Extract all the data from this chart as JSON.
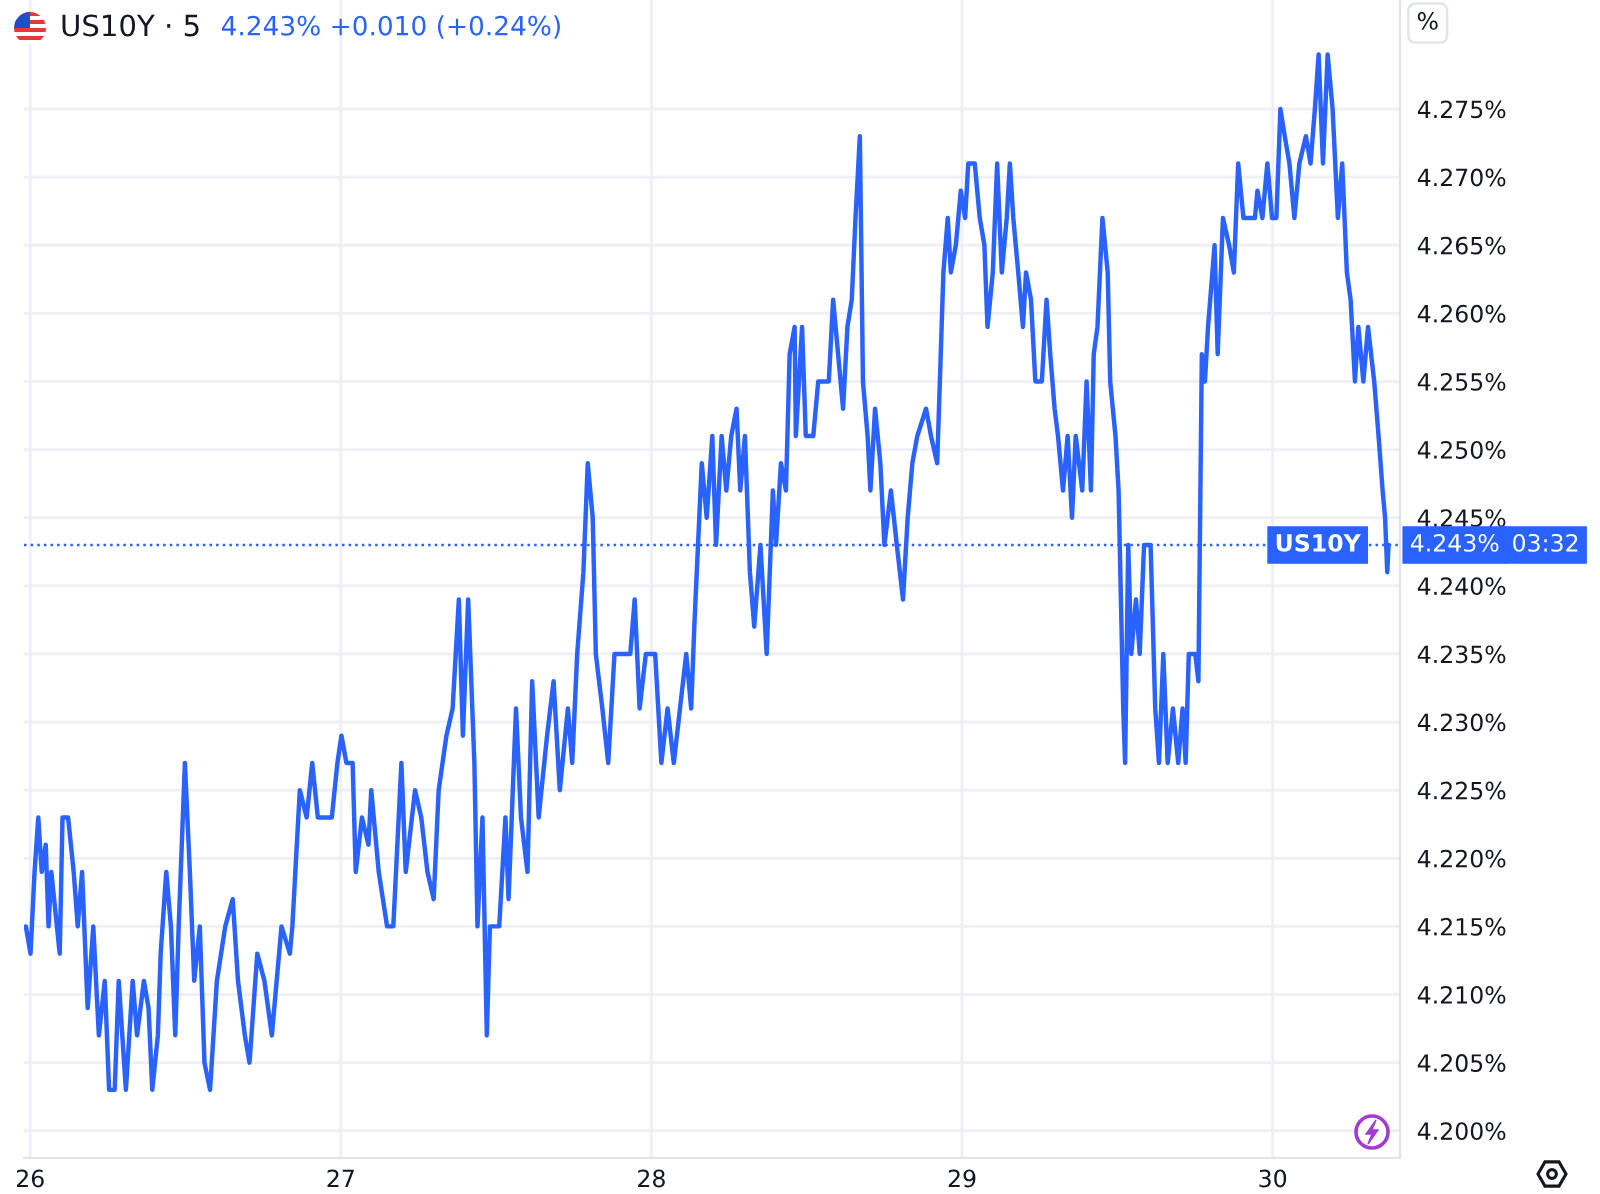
{
  "chart_data": {
    "type": "line",
    "title": "US10Y · 5",
    "subtitle": "4.243% +0.010 (+0.24%)",
    "ylabel": "%",
    "series": [
      {
        "name": "US10Y",
        "color": "#2962ff",
        "x": [
          25.986,
          26.001,
          26.014,
          26.026,
          26.037,
          26.05,
          26.059,
          26.068,
          26.095,
          26.104,
          26.122,
          26.14,
          26.153,
          26.167,
          26.185,
          26.203,
          26.221,
          26.24,
          26.254,
          26.272,
          26.285,
          26.308,
          26.33,
          26.344,
          26.366,
          26.381,
          26.393,
          26.411,
          26.42,
          26.438,
          26.453,
          26.467,
          26.478,
          26.498,
          26.514,
          26.528,
          26.546,
          26.561,
          26.579,
          26.601,
          26.628,
          26.652,
          26.669,
          26.691,
          26.706,
          26.731,
          26.754,
          26.778,
          26.809,
          26.836,
          26.844,
          26.868,
          26.89,
          26.908,
          26.926,
          26.971,
          26.989,
          27.002,
          27.018,
          27.038,
          27.048,
          27.068,
          27.089,
          27.098,
          27.122,
          27.149,
          27.169,
          27.195,
          27.209,
          27.239,
          27.259,
          27.279,
          27.299,
          27.315,
          27.34,
          27.36,
          27.38,
          27.393,
          27.41,
          27.43,
          27.44,
          27.456,
          27.47,
          27.48,
          27.51,
          27.53,
          27.54,
          27.564,
          27.58,
          27.601,
          27.616,
          27.637,
          27.664,
          27.685,
          27.705,
          27.731,
          27.745,
          27.761,
          27.781,
          27.795,
          27.811,
          27.821,
          27.842,
          27.861,
          27.881,
          27.932,
          27.946,
          27.962,
          27.982,
          28.012,
          28.032,
          28.052,
          28.072,
          28.092,
          28.112,
          28.128,
          28.138,
          28.162,
          28.178,
          28.196,
          28.208,
          28.226,
          28.241,
          28.257,
          28.274,
          28.286,
          28.301,
          28.317,
          28.331,
          28.351,
          28.371,
          28.391,
          28.401,
          28.417,
          28.433,
          28.445,
          28.461,
          28.465,
          28.485,
          28.497,
          28.521,
          28.537,
          28.571,
          28.585,
          28.601,
          28.617,
          28.631,
          28.645,
          28.657,
          28.671,
          28.681,
          28.696,
          28.705,
          28.72,
          28.737,
          28.75,
          28.771,
          28.79,
          28.81,
          28.825,
          28.84,
          28.856,
          28.884,
          28.9,
          28.92,
          28.94,
          28.954,
          28.964,
          28.98,
          28.996,
          29.01,
          29.02,
          29.041,
          29.057,
          29.072,
          29.082,
          29.099,
          29.113,
          29.128,
          29.144,
          29.154,
          29.165,
          29.181,
          29.196,
          29.206,
          29.222,
          29.236,
          29.257,
          29.272,
          29.284,
          29.298,
          29.309,
          29.325,
          29.34,
          29.354,
          29.366,
          29.387,
          29.401,
          29.415,
          29.424,
          29.436,
          29.452,
          29.469,
          29.477,
          29.494,
          29.504,
          29.519,
          29.525,
          29.535,
          29.545,
          29.56,
          29.572,
          29.586,
          29.607,
          29.622,
          29.634,
          29.648,
          29.662,
          29.679,
          29.696,
          29.71,
          29.72,
          29.73,
          29.751,
          29.761,
          29.772,
          29.782,
          29.792,
          29.813,
          29.823,
          29.84,
          29.86,
          29.875,
          29.889,
          29.906,
          29.943,
          29.951,
          29.967,
          29.983,
          29.998,
          30.012,
          30.025,
          30.039,
          30.054,
          30.07,
          30.086,
          30.107,
          30.122,
          30.136,
          30.148,
          30.162,
          30.177,
          30.193,
          30.21,
          30.224,
          30.239,
          30.251,
          30.265,
          30.276,
          30.292,
          30.307,
          30.327,
          30.341,
          30.354,
          30.362,
          30.369,
          30.373
        ],
        "values": [
          4.215,
          4.213,
          4.219,
          4.223,
          4.219,
          4.221,
          4.215,
          4.219,
          4.213,
          4.223,
          4.223,
          4.219,
          4.215,
          4.219,
          4.209,
          4.215,
          4.207,
          4.211,
          4.203,
          4.203,
          4.211,
          4.203,
          4.211,
          4.207,
          4.211,
          4.209,
          4.203,
          4.207,
          4.213,
          4.219,
          4.215,
          4.207,
          4.215,
          4.227,
          4.219,
          4.211,
          4.215,
          4.205,
          4.203,
          4.211,
          4.215,
          4.217,
          4.211,
          4.207,
          4.205,
          4.213,
          4.211,
          4.207,
          4.215,
          4.213,
          4.215,
          4.225,
          4.223,
          4.227,
          4.223,
          4.223,
          4.227,
          4.229,
          4.227,
          4.227,
          4.219,
          4.223,
          4.221,
          4.225,
          4.219,
          4.215,
          4.215,
          4.227,
          4.219,
          4.225,
          4.223,
          4.219,
          4.217,
          4.225,
          4.229,
          4.231,
          4.239,
          4.229,
          4.239,
          4.227,
          4.215,
          4.223,
          4.207,
          4.215,
          4.215,
          4.223,
          4.217,
          4.231,
          4.223,
          4.219,
          4.233,
          4.223,
          4.229,
          4.233,
          4.225,
          4.231,
          4.227,
          4.235,
          4.241,
          4.249,
          4.245,
          4.235,
          4.231,
          4.227,
          4.235,
          4.235,
          4.239,
          4.231,
          4.235,
          4.235,
          4.227,
          4.231,
          4.227,
          4.231,
          4.235,
          4.231,
          4.237,
          4.249,
          4.245,
          4.251,
          4.243,
          4.251,
          4.247,
          4.251,
          4.253,
          4.247,
          4.251,
          4.241,
          4.237,
          4.243,
          4.235,
          4.247,
          4.243,
          4.249,
          4.247,
          4.257,
          4.259,
          4.251,
          4.259,
          4.251,
          4.251,
          4.255,
          4.255,
          4.261,
          4.257,
          4.253,
          4.259,
          4.261,
          4.267,
          4.273,
          4.255,
          4.251,
          4.247,
          4.253,
          4.249,
          4.243,
          4.247,
          4.243,
          4.239,
          4.245,
          4.249,
          4.251,
          4.253,
          4.251,
          4.249,
          4.263,
          4.267,
          4.263,
          4.265,
          4.269,
          4.267,
          4.271,
          4.271,
          4.267,
          4.265,
          4.259,
          4.263,
          4.271,
          4.263,
          4.267,
          4.271,
          4.267,
          4.263,
          4.259,
          4.263,
          4.261,
          4.255,
          4.255,
          4.261,
          4.257,
          4.253,
          4.251,
          4.247,
          4.251,
          4.245,
          4.251,
          4.247,
          4.255,
          4.247,
          4.257,
          4.259,
          4.267,
          4.263,
          4.255,
          4.251,
          4.247,
          4.231,
          4.227,
          4.243,
          4.235,
          4.239,
          4.235,
          4.243,
          4.243,
          4.231,
          4.227,
          4.235,
          4.227,
          4.231,
          4.227,
          4.231,
          4.227,
          4.235,
          4.235,
          4.233,
          4.257,
          4.255,
          4.259,
          4.265,
          4.257,
          4.267,
          4.265,
          4.263,
          4.271,
          4.267,
          4.267,
          4.269,
          4.267,
          4.271,
          4.267,
          4.267,
          4.275,
          4.273,
          4.271,
          4.267,
          4.271,
          4.273,
          4.271,
          4.275,
          4.279,
          4.271,
          4.279,
          4.275,
          4.267,
          4.271,
          4.263,
          4.261,
          4.255,
          4.259,
          4.255,
          4.259,
          4.255,
          4.251,
          4.247,
          4.245,
          4.241,
          4.243
        ]
      }
    ],
    "xlim": [
      25.98,
      30.41
    ],
    "xticks": [
      26,
      27,
      28,
      29,
      30
    ],
    "ylim": [
      4.198,
      4.283
    ],
    "yticks": [
      {
        "value": 4.2,
        "label": "4.200%"
      },
      {
        "value": 4.205,
        "label": "4.205%"
      },
      {
        "value": 4.21,
        "label": "4.210%"
      },
      {
        "value": 4.215,
        "label": "4.215%"
      },
      {
        "value": 4.22,
        "label": "4.220%"
      },
      {
        "value": 4.225,
        "label": "4.225%"
      },
      {
        "value": 4.23,
        "label": "4.230%"
      },
      {
        "value": 4.235,
        "label": "4.235%"
      },
      {
        "value": 4.24,
        "label": "4.240%"
      },
      {
        "value": 4.245,
        "label": "4.245%"
      },
      {
        "value": 4.25,
        "label": "4.250%"
      },
      {
        "value": 4.255,
        "label": "4.255%"
      },
      {
        "value": 4.26,
        "label": "4.260%"
      },
      {
        "value": 4.265,
        "label": "4.265%"
      },
      {
        "value": 4.27,
        "label": "4.270%"
      },
      {
        "value": 4.275,
        "label": "4.275%"
      }
    ],
    "grid": true,
    "ref_lines": [
      {
        "axis": "y",
        "value": 4.243,
        "label": "4.243%",
        "color": "#2962ff",
        "line_style": "dotted"
      }
    ],
    "annotations": [
      "03:32"
    ]
  }
}
